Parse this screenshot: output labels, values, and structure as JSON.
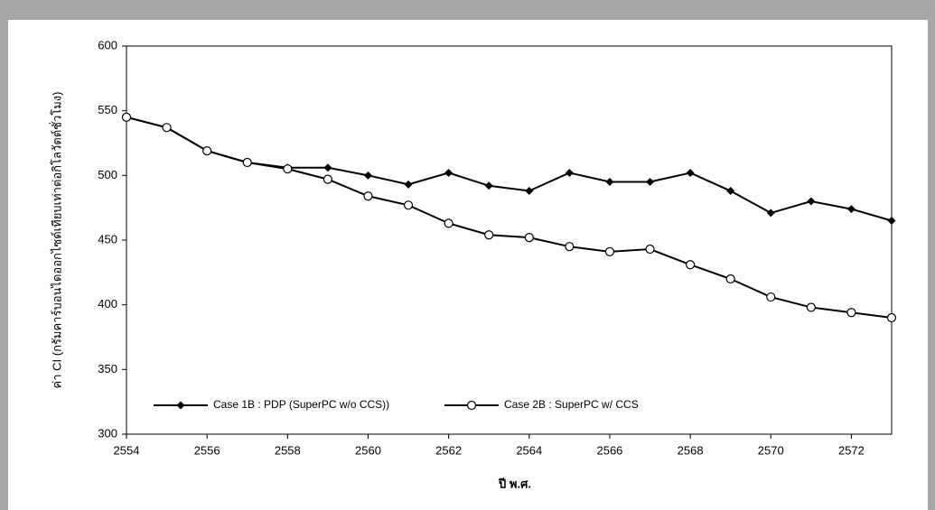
{
  "chart_data": {
    "type": "line",
    "y_label": "ค่า CI (กรัมคาร์บอนไดออกไซด์เทียบเท่าต่อกิโลวัตต์ชั่วโมง)",
    "x_label": "ปี พ.ศ.",
    "x": [
      2554,
      2555,
      2556,
      2557,
      2558,
      2559,
      2560,
      2561,
      2562,
      2563,
      2564,
      2565,
      2566,
      2567,
      2568,
      2569,
      2570,
      2571,
      2572,
      2573
    ],
    "series": [
      {
        "name": "Case 1B : PDP (SuperPC w/o CCS))",
        "color": "#000000",
        "marker": "diamond",
        "values": [
          545,
          537,
          519,
          510,
          506,
          506,
          500,
          493,
          502,
          492,
          488,
          502,
          495,
          495,
          502,
          488,
          471,
          480,
          474,
          465
        ]
      },
      {
        "name": "Case 2B : SuperPC w/ CCS",
        "color": "#000000",
        "marker": "circle",
        "values": [
          545,
          537,
          519,
          510,
          505,
          497,
          484,
          477,
          463,
          454,
          452,
          445,
          441,
          443,
          431,
          420,
          406,
          398,
          394,
          390
        ]
      }
    ],
    "xlim": [
      2554,
      2573
    ],
    "xticks": [
      2554,
      2556,
      2558,
      2560,
      2562,
      2564,
      2566,
      2568,
      2570,
      2572
    ],
    "ylim": [
      300,
      600
    ],
    "yticks": [
      300,
      350,
      400,
      450,
      500,
      550,
      600
    ],
    "grid": false
  }
}
